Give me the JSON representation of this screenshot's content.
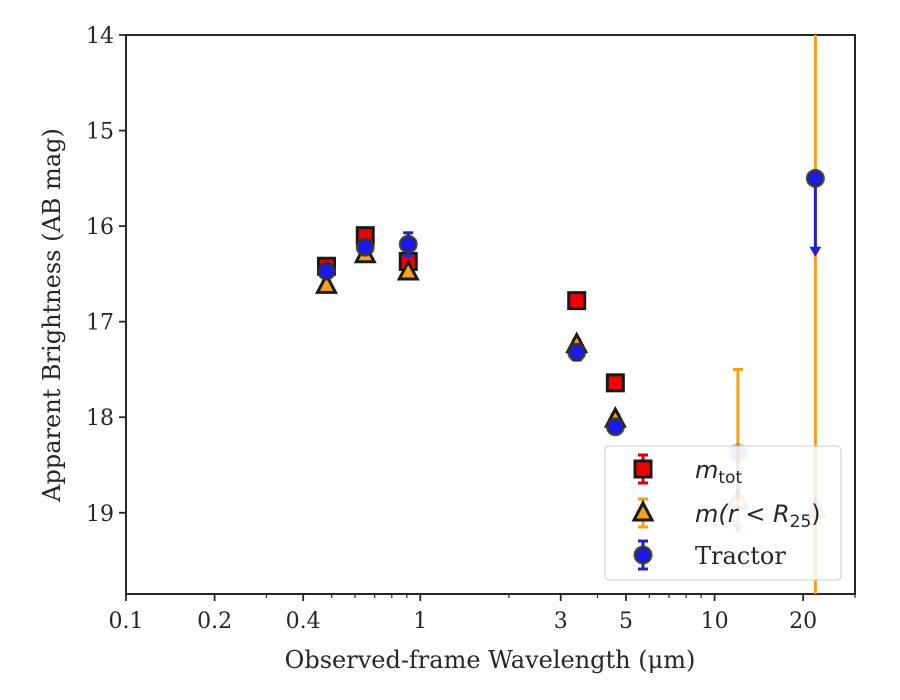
{
  "chart_data": {
    "type": "scatter",
    "title": "",
    "xlabel": "Observed-frame Wavelength (μm)",
    "ylabel": "Apparent Brightness (AB mag)",
    "xscale": "log",
    "xlim": [
      0.1,
      30
    ],
    "ylim": [
      19.85,
      14
    ],
    "y_inverted": true,
    "x_ticks": [
      {
        "value": 0.1,
        "label": "0.1"
      },
      {
        "value": 0.2,
        "label": "0.2"
      },
      {
        "value": 0.4,
        "label": "0.4"
      },
      {
        "value": 1,
        "label": "1"
      },
      {
        "value": 3,
        "label": "3"
      },
      {
        "value": 5,
        "label": "5"
      },
      {
        "value": 10,
        "label": "10"
      },
      {
        "value": 20,
        "label": "20"
      }
    ],
    "y_ticks": [
      {
        "value": 14,
        "label": "14"
      },
      {
        "value": 15,
        "label": "15"
      },
      {
        "value": 16,
        "label": "16"
      },
      {
        "value": 17,
        "label": "17"
      },
      {
        "value": 18,
        "label": "18"
      },
      {
        "value": 19,
        "label": "19"
      }
    ],
    "grid": false,
    "legend_position": "bottom-right",
    "series": [
      {
        "key": "mtot",
        "legend_main": "m",
        "legend_sub": "tot",
        "legend_suffix": "",
        "marker": "square",
        "fill": "#ee0000",
        "edge": "#1a1a1a",
        "errcolor": "#dd0000",
        "points": [
          {
            "x": 0.48,
            "y": 16.42,
            "err": 0.05
          },
          {
            "x": 0.65,
            "y": 16.1,
            "err": 0.05
          },
          {
            "x": 0.91,
            "y": 16.37,
            "err": 0.05
          },
          {
            "x": 3.4,
            "y": 16.78,
            "err": 0.06
          },
          {
            "x": 4.6,
            "y": 17.64,
            "err": 0.06
          }
        ]
      },
      {
        "key": "mr25",
        "legend_main": "m(r < R",
        "legend_sub": "25",
        "legend_suffix": ")",
        "marker": "triangle",
        "fill": "#f7a11a",
        "edge": "#1a1a1a",
        "errcolor": "#f7a11a",
        "points": [
          {
            "x": 0.48,
            "y": 16.62,
            "err": 0.04
          },
          {
            "x": 0.65,
            "y": 16.3,
            "err": 0.04
          },
          {
            "x": 0.91,
            "y": 16.48,
            "err": 0.04
          },
          {
            "x": 3.4,
            "y": 17.24,
            "err": 0.05
          },
          {
            "x": 4.6,
            "y": 18.02,
            "err": 0.05
          },
          {
            "x": 12.0,
            "y": 18.87,
            "err_low": 1.37,
            "err_high": 0.0,
            "faded": true
          },
          {
            "x": 22.0,
            "y": 18.97,
            "err_low": 5.0,
            "err_high": 1.0,
            "faded": true
          }
        ]
      },
      {
        "key": "tractor",
        "legend_main": "Tractor",
        "legend_sub": "",
        "legend_suffix": "",
        "marker": "circle",
        "fill": "#1a1aee",
        "edge": "#333333",
        "errcolor": "#2222cc",
        "points": [
          {
            "x": 0.48,
            "y": 16.47,
            "err": 0.05
          },
          {
            "x": 0.65,
            "y": 16.22,
            "err": 0.05
          },
          {
            "x": 0.91,
            "y": 16.19,
            "err": 0.12
          },
          {
            "x": 3.4,
            "y": 17.32,
            "err": 0.08
          },
          {
            "x": 4.6,
            "y": 18.1,
            "err": 0.06
          },
          {
            "x": 12.0,
            "y": 18.37,
            "upper_limit_to": 19.2,
            "faded": true
          },
          {
            "x": 22.0,
            "y": 15.5,
            "upper_limit_to": 16.3
          }
        ]
      }
    ]
  }
}
